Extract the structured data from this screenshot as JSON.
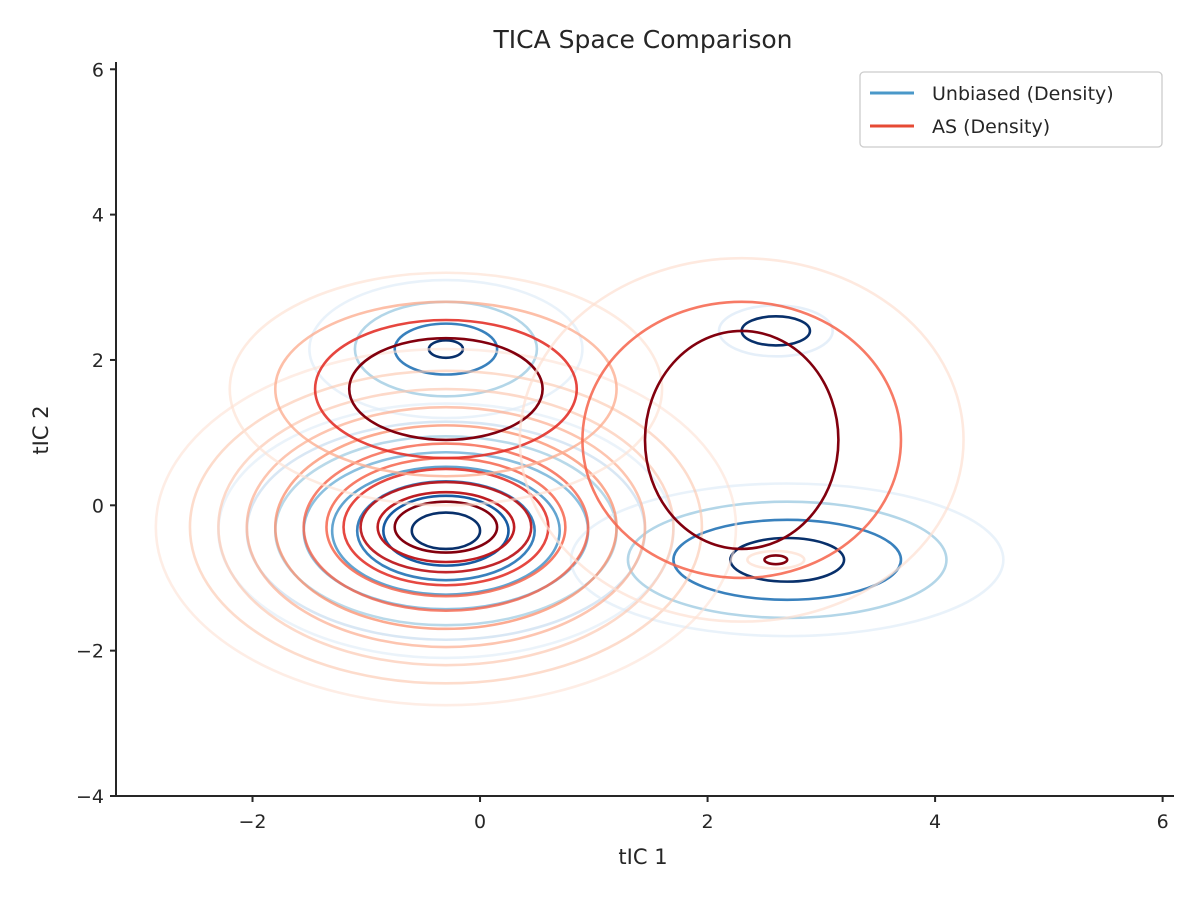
{
  "chart_data": {
    "type": "contour",
    "title": "TICA Space Comparison",
    "xlabel": "tIC 1",
    "ylabel": "tIC 2",
    "xlim": [
      -3.2,
      6.1
    ],
    "ylim": [
      -4,
      6.1
    ],
    "xticks": [
      -2,
      0,
      2,
      4,
      6
    ],
    "yticks": [
      -4,
      -2,
      0,
      2,
      4,
      6
    ],
    "xtick_labels": [
      "−2",
      "0",
      "2",
      "4",
      "6"
    ],
    "ytick_labels": [
      "−4",
      "−2",
      "0",
      "2",
      "4",
      "6"
    ],
    "grid": false,
    "legend_position": "top-right",
    "series": [
      {
        "name": "Unbiased (Density)",
        "legend_color": "#4a98c9",
        "level_colors": [
          "#deebf7",
          "#c6dbef",
          "#9ecae1",
          "#6baed6",
          "#4292c6",
          "#2171b5",
          "#08519c",
          "#08306b"
        ],
        "modes": [
          {
            "center": [
              -0.3,
              -0.35
            ],
            "levels": [
              [
                2.0,
                1.75
              ],
              [
                1.75,
                1.5
              ],
              [
                1.5,
                1.3
              ],
              [
                1.25,
                1.08
              ],
              [
                1.0,
                0.88
              ],
              [
                0.78,
                0.68
              ],
              [
                0.55,
                0.48
              ],
              [
                0.3,
                0.25
              ]
            ]
          },
          {
            "center": [
              -0.3,
              2.15
            ],
            "levels": [
              [
                1.2,
                0.95
              ],
              [
                0.8,
                0.65
              ],
              [
                0.45,
                0.35
              ],
              [
                0.15,
                0.12
              ]
            ]
          },
          {
            "center": [
              2.7,
              -0.75
            ],
            "levels": [
              [
                1.9,
                1.05
              ],
              [
                1.4,
                0.8
              ],
              [
                1.0,
                0.55
              ],
              [
                0.5,
                0.3
              ]
            ]
          },
          {
            "center": [
              2.6,
              2.4
            ],
            "levels": [
              [
                0.5,
                0.35
              ],
              [
                0.3,
                0.2
              ]
            ]
          }
        ]
      },
      {
        "name": "AS (Density)",
        "legend_color": "#e64a34",
        "level_colors": [
          "#fee0d2",
          "#fcc7af",
          "#fcad90",
          "#fb8e6b",
          "#f6634a",
          "#e32f27",
          "#bb1419",
          "#82000e"
        ],
        "modes": [
          {
            "center": [
              -0.3,
              -0.3
            ],
            "levels": [
              [
                2.55,
                2.45
              ],
              [
                2.25,
                2.15
              ],
              [
                2.0,
                1.9
              ],
              [
                1.75,
                1.65
              ],
              [
                1.5,
                1.4
              ],
              [
                1.25,
                1.15
              ],
              [
                1.05,
                0.95
              ],
              [
                0.9,
                0.8
              ],
              [
                0.75,
                0.62
              ],
              [
                0.6,
                0.48
              ],
              [
                0.45,
                0.35
              ]
            ]
          },
          {
            "center": [
              -0.3,
              1.6
            ],
            "levels": [
              [
                1.9,
                1.6
              ],
              [
                1.5,
                1.2
              ],
              [
                1.15,
                0.95
              ],
              [
                0.85,
                0.7
              ]
            ]
          },
          {
            "center": [
              2.3,
              0.9
            ],
            "levels": [
              [
                1.95,
                2.5
              ],
              [
                1.4,
                1.9
              ],
              [
                0.85,
                1.5
              ]
            ]
          },
          {
            "center": [
              2.6,
              -0.75
            ],
            "levels": [
              [
                0.25,
                0.12
              ],
              [
                0.1,
                0.06
              ]
            ]
          }
        ]
      }
    ]
  }
}
